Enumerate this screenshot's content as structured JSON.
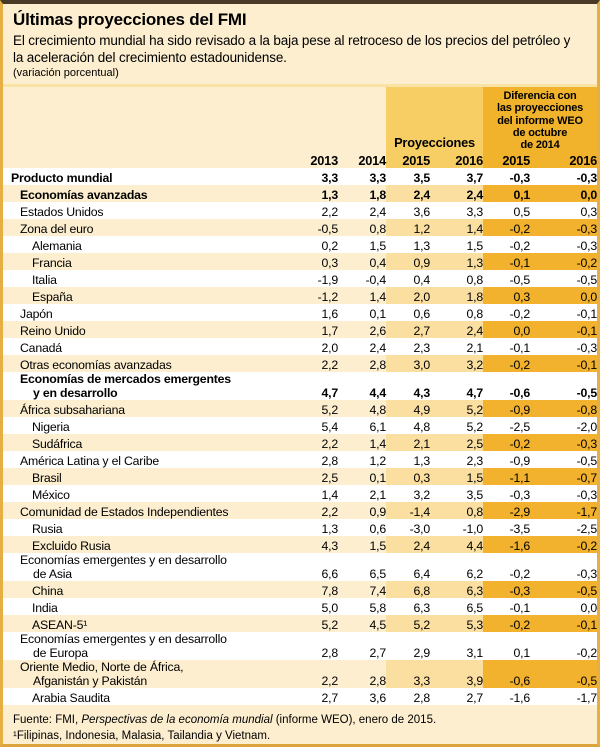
{
  "header": {
    "title": "Últimas proyecciones del FMI",
    "subtitle": "El crecimiento mundial ha sido revisado a la baja pese al retroceso de los precios del petróleo y la aceleración del crecimiento estadounidense.",
    "unit_note": "(variación porcentual)"
  },
  "table": {
    "group_headers": {
      "proyecciones": "Proyecciones",
      "diferencia": "Diferencia con\nlas proyecciones\ndel informe WEO\nde octubre\nde 2014"
    },
    "year_columns": [
      "2013",
      "2014",
      "2015",
      "2016",
      "2015",
      "2016"
    ],
    "rows": [
      {
        "label": "Producto mundial",
        "label2": null,
        "indent": 0,
        "bold": true,
        "shade": "white",
        "values": [
          "3,3",
          "3,3",
          "3,5",
          "3,7",
          "-0,3",
          "-0,3"
        ]
      },
      {
        "label": "Economías avanzadas",
        "label2": null,
        "indent": 1,
        "bold": true,
        "shade": "cream",
        "values": [
          "1,3",
          "1,8",
          "2,4",
          "2,4",
          "0,1",
          "0,0"
        ]
      },
      {
        "label": "Estados Unidos",
        "label2": null,
        "indent": 1,
        "bold": false,
        "shade": "white",
        "values": [
          "2,2",
          "2,4",
          "3,6",
          "3,3",
          "0,5",
          "0,3"
        ]
      },
      {
        "label": "Zona del euro",
        "label2": null,
        "indent": 1,
        "bold": false,
        "shade": "cream",
        "values": [
          "-0,5",
          "0,8",
          "1,2",
          "1,4",
          "-0,2",
          "-0,3"
        ]
      },
      {
        "label": "Alemania",
        "label2": null,
        "indent": 2,
        "bold": false,
        "shade": "white",
        "values": [
          "0,2",
          "1,5",
          "1,3",
          "1,5",
          "-0,2",
          "-0,3"
        ]
      },
      {
        "label": "Francia",
        "label2": null,
        "indent": 2,
        "bold": false,
        "shade": "cream",
        "values": [
          "0,3",
          "0,4",
          "0,9",
          "1,3",
          "-0,1",
          "-0,2"
        ]
      },
      {
        "label": "Italia",
        "label2": null,
        "indent": 2,
        "bold": false,
        "shade": "white",
        "values": [
          "-1,9",
          "-0,4",
          "0,4",
          "0,8",
          "-0,5",
          "-0,5"
        ]
      },
      {
        "label": "España",
        "label2": null,
        "indent": 2,
        "bold": false,
        "shade": "cream",
        "values": [
          "-1,2",
          "1,4",
          "2,0",
          "1,8",
          "0,3",
          "0,0"
        ]
      },
      {
        "label": "Japón",
        "label2": null,
        "indent": 1,
        "bold": false,
        "shade": "white",
        "values": [
          "1,6",
          "0,1",
          "0,6",
          "0,8",
          "-0,2",
          "-0,1"
        ]
      },
      {
        "label": "Reino Unido",
        "label2": null,
        "indent": 1,
        "bold": false,
        "shade": "cream",
        "values": [
          "1,7",
          "2,6",
          "2,7",
          "2,4",
          "0,0",
          "-0,1"
        ]
      },
      {
        "label": "Canadá",
        "label2": null,
        "indent": 1,
        "bold": false,
        "shade": "white",
        "values": [
          "2,0",
          "2,4",
          "2,3",
          "2,1",
          "-0,1",
          "-0,3"
        ]
      },
      {
        "label": "Otras economías avanzadas",
        "label2": null,
        "indent": 1,
        "bold": false,
        "shade": "cream",
        "values": [
          "2,2",
          "2,8",
          "3,0",
          "3,2",
          "-0,2",
          "-0,1"
        ]
      },
      {
        "label": "Economías de mercados emergentes",
        "label2": "y en desarrollo",
        "indent": 1,
        "bold": true,
        "shade": "white",
        "values": [
          "4,7",
          "4,4",
          "4,3",
          "4,7",
          "-0,6",
          "-0,5"
        ]
      },
      {
        "label": "África subsahariana",
        "label2": null,
        "indent": 1,
        "bold": false,
        "shade": "cream",
        "values": [
          "5,2",
          "4,8",
          "4,9",
          "5,2",
          "-0,9",
          "-0,8"
        ]
      },
      {
        "label": "Nigeria",
        "label2": null,
        "indent": 2,
        "bold": false,
        "shade": "white",
        "values": [
          "5,4",
          "6,1",
          "4,8",
          "5,2",
          "-2,5",
          "-2,0"
        ]
      },
      {
        "label": "Sudáfrica",
        "label2": null,
        "indent": 2,
        "bold": false,
        "shade": "cream",
        "values": [
          "2,2",
          "1,4",
          "2,1",
          "2,5",
          "-0,2",
          "-0,3"
        ]
      },
      {
        "label": "América Latina y el Caribe",
        "label2": null,
        "indent": 1,
        "bold": false,
        "shade": "white",
        "values": [
          "2,8",
          "1,2",
          "1,3",
          "2,3",
          "-0,9",
          "-0,5"
        ]
      },
      {
        "label": "Brasil",
        "label2": null,
        "indent": 2,
        "bold": false,
        "shade": "cream",
        "values": [
          "2,5",
          "0,1",
          "0,3",
          "1,5",
          "-1,1",
          "-0,7"
        ]
      },
      {
        "label": "México",
        "label2": null,
        "indent": 2,
        "bold": false,
        "shade": "white",
        "values": [
          "1,4",
          "2,1",
          "3,2",
          "3,5",
          "-0,3",
          "-0,3"
        ]
      },
      {
        "label": "Comunidad de Estados Independientes",
        "label2": null,
        "indent": 1,
        "bold": false,
        "shade": "cream",
        "values": [
          "2,2",
          "0,9",
          "-1,4",
          "0,8",
          "-2,9",
          "-1,7"
        ]
      },
      {
        "label": "Rusia",
        "label2": null,
        "indent": 2,
        "bold": false,
        "shade": "white",
        "values": [
          "1,3",
          "0,6",
          "-3,0",
          "-1,0",
          "-3,5",
          "-2,5"
        ]
      },
      {
        "label": "Excluido Rusia",
        "label2": null,
        "indent": 2,
        "bold": false,
        "shade": "cream",
        "values": [
          "4,3",
          "1,5",
          "2,4",
          "4,4",
          "-1,6",
          "-0,2"
        ]
      },
      {
        "label": "Economías emergentes y en desarrollo",
        "label2": "de Asia",
        "indent": 1,
        "bold": false,
        "shade": "white",
        "values": [
          "6,6",
          "6,5",
          "6,4",
          "6,2",
          "-0,2",
          "-0,3"
        ]
      },
      {
        "label": "China",
        "label2": null,
        "indent": 2,
        "bold": false,
        "shade": "cream",
        "values": [
          "7,8",
          "7,4",
          "6,8",
          "6,3",
          "-0,3",
          "-0,5"
        ]
      },
      {
        "label": "India",
        "label2": null,
        "indent": 2,
        "bold": false,
        "shade": "white",
        "values": [
          "5,0",
          "5,8",
          "6,3",
          "6,5",
          "-0,1",
          "0,0"
        ]
      },
      {
        "label": "ASEAN-5¹",
        "label2": null,
        "indent": 2,
        "bold": false,
        "shade": "cream",
        "values": [
          "5,2",
          "4,5",
          "5,2",
          "5,3",
          "-0,2",
          "-0,1"
        ]
      },
      {
        "label": "Economías emergentes y en desarrollo",
        "label2": "de Europa",
        "indent": 1,
        "bold": false,
        "shade": "white",
        "values": [
          "2,8",
          "2,7",
          "2,9",
          "3,1",
          "0,1",
          "-0,2"
        ]
      },
      {
        "label": "Oriente Medio, Norte de África,",
        "label2": "Afganistán y Pakistán",
        "indent": 1,
        "bold": false,
        "shade": "cream",
        "values": [
          "2,2",
          "2,8",
          "3,3",
          "3,9",
          "-0,6",
          "-0,5"
        ]
      },
      {
        "label": "Arabia Saudita",
        "label2": null,
        "indent": 2,
        "bold": false,
        "shade": "white",
        "values": [
          "2,7",
          "3,6",
          "2,8",
          "2,7",
          "-1,6",
          "-1,7"
        ]
      }
    ]
  },
  "footer": {
    "source_prefix": "Fuente: FMI, ",
    "source_italic": "Perspectivas de la economía mundial",
    "source_suffix": " (informe WEO), enero de 2015.",
    "footnote": "¹Filipinas, Indonesia, Malasia, Tailandia y Vietnam."
  },
  "colors": {
    "cream_bg": "#FCEECF",
    "white_row": "#FFFFFF",
    "proyecciones_header_gold": "#F7CE63",
    "proyecciones_cell_gold": "#FBDFA0",
    "diferencia_orange": "#F1B22C",
    "outer_border_gold": "#E6AF44",
    "top_border_dark": "#483A26"
  }
}
